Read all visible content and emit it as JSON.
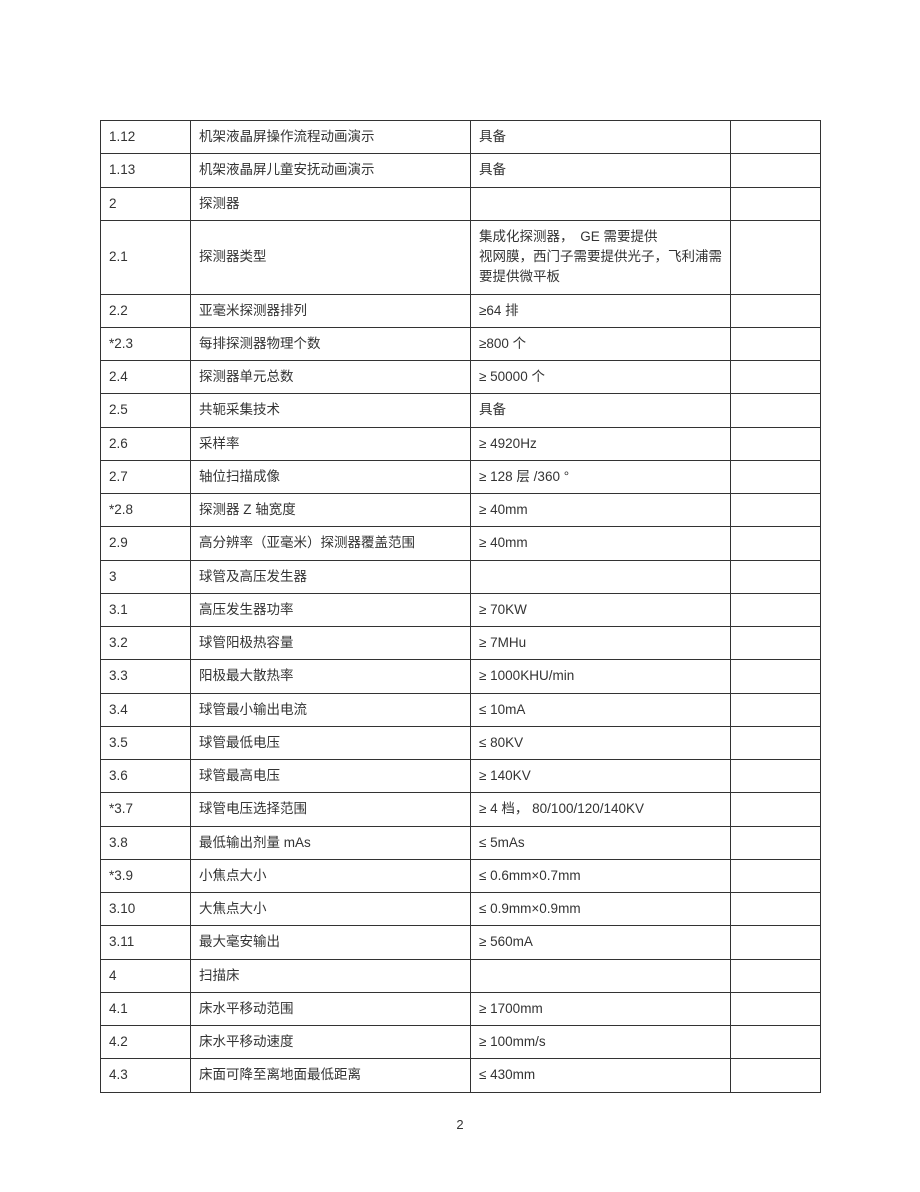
{
  "page_number": "2",
  "table": {
    "rows": [
      {
        "id": "1.12",
        "desc": "机架液晶屏操作流程动画演示",
        "val": "具备"
      },
      {
        "id": "1.13",
        "desc": "机架液晶屏儿童安抚动画演示",
        "val": "具备"
      },
      {
        "id": "2",
        "desc": "探测器",
        "val": ""
      },
      {
        "id": "2.1",
        "desc": "探测器类型",
        "val": "集成化探测器，　GE 需要提供\n视网膜，西门子需要提供光子，飞利浦需要提供微平板"
      },
      {
        "id": "2.2",
        "desc": "亚毫米探测器排列",
        "val": "≥64 排"
      },
      {
        "id": "*2.3",
        "desc": "每排探测器物理个数",
        "val": "≥800 个"
      },
      {
        "id": "2.4",
        "desc": "探测器单元总数",
        "val": "≥ 50000 个"
      },
      {
        "id": "2.5",
        "desc": "共轭采集技术",
        "val": "具备"
      },
      {
        "id": "2.6",
        "desc": "采样率",
        "val": "≥ 4920Hz"
      },
      {
        "id": "2.7",
        "desc": "轴位扫描成像",
        "val": "≥ 128 层 /360 °"
      },
      {
        "id": "*2.8",
        "desc": "探测器 Z 轴宽度",
        "val": "≥ 40mm"
      },
      {
        "id": "2.9",
        "desc": "高分辨率（亚毫米）探测器覆盖范围",
        "val": "≥ 40mm"
      },
      {
        "id": "3",
        "desc": "球管及高压发生器",
        "val": ""
      },
      {
        "id": "3.1",
        "desc": "高压发生器功率",
        "val": "≥ 70KW"
      },
      {
        "id": "3.2",
        "desc": "球管阳极热容量",
        "val": "≥ 7MHu"
      },
      {
        "id": "3.3",
        "desc": "阳极最大散热率",
        "val": "≥ 1000KHU/min"
      },
      {
        "id": "3.4",
        "desc": "球管最小输出电流",
        "val": "≤ 10mA"
      },
      {
        "id": "3.5",
        "desc": "球管最低电压",
        "val": "≤ 80KV"
      },
      {
        "id": "3.6",
        "desc": "球管最高电压",
        "val": "≥ 140KV"
      },
      {
        "id": "*3.7",
        "desc": "球管电压选择范围",
        "val": "≥ 4 档， 80/100/120/140KV"
      },
      {
        "id": "3.8",
        "desc": "最低输出剂量  mAs",
        "val": "≤ 5mAs"
      },
      {
        "id": "*3.9",
        "desc": "小焦点大小",
        "val": "≤ 0.6mm×0.7mm"
      },
      {
        "id": "3.10",
        "desc": "大焦点大小",
        "val": "≤ 0.9mm×0.9mm"
      },
      {
        "id": "3.11",
        "desc": "最大毫安输出",
        "val": "≥ 560mA"
      },
      {
        "id": "4",
        "desc": "扫描床",
        "val": ""
      },
      {
        "id": "4.1",
        "desc": "床水平移动范围",
        "val": "≥ 1700mm"
      },
      {
        "id": "4.2",
        "desc": "床水平移动速度",
        "val": "≥ 100mm/s"
      },
      {
        "id": "4.3",
        "desc": "床面可降至离地面最低距离",
        "val": "≤ 430mm"
      }
    ]
  }
}
